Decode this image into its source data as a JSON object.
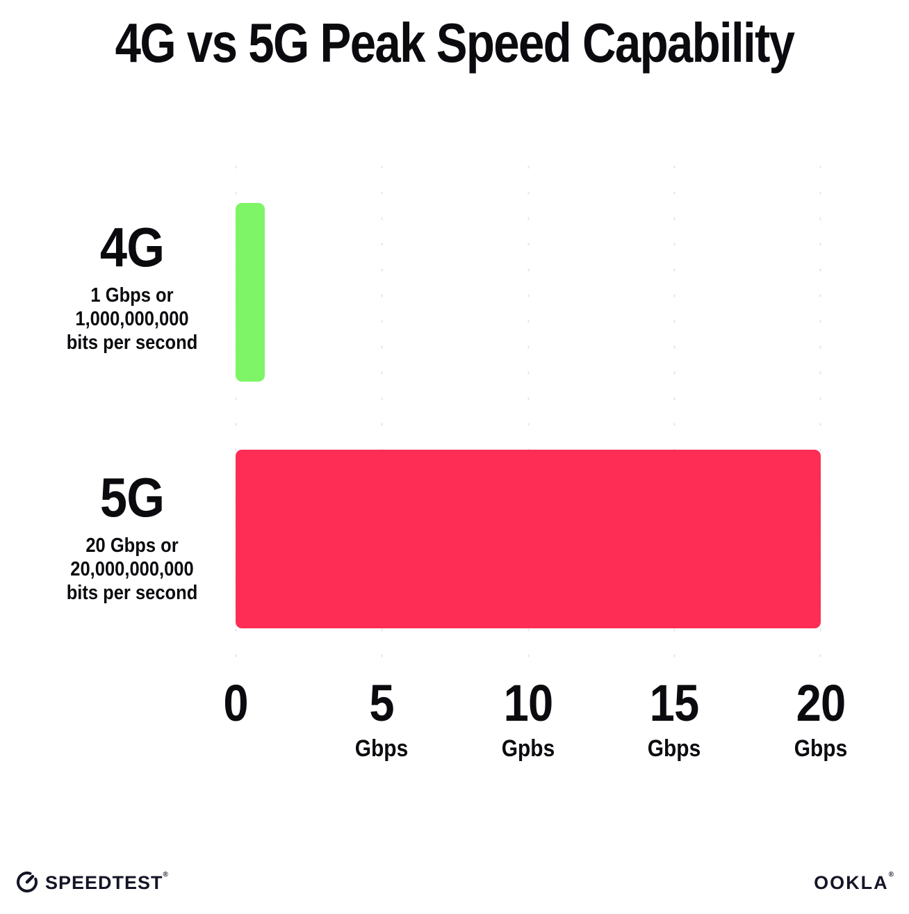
{
  "title": "4G vs 5G Peak Speed Capability",
  "chart_data": {
    "type": "bar",
    "orientation": "horizontal",
    "title": "4G vs 5G Peak Speed Capability",
    "categories": [
      "4G",
      "5G"
    ],
    "values": [
      1,
      20
    ],
    "value_unit": "Gbps",
    "xlim": [
      0,
      20
    ],
    "grid": "dotted vertical gridlines every 5 Gbps",
    "legend": "none",
    "colors": [
      "#7ef566",
      "#fd2d55"
    ],
    "rows": [
      {
        "label": "4G",
        "sub_line_1": "1 Gbps or",
        "sub_line_2": "1,000,000,000",
        "sub_line_3": "bits per second",
        "value_gbps": 1
      },
      {
        "label": "5G",
        "sub_line_1": "20 Gbps or",
        "sub_line_2": "20,000,000,000",
        "sub_line_3": "bits per second",
        "value_gbps": 20
      }
    ],
    "x_ticks": [
      {
        "value": "0",
        "unit": ""
      },
      {
        "value": "5",
        "unit": "Gbps"
      },
      {
        "value": "10",
        "unit": "Gpbs"
      },
      {
        "value": "15",
        "unit": "Gbps"
      },
      {
        "value": "20",
        "unit": "Gbps"
      }
    ]
  },
  "footer": {
    "speedtest_label": "SPEEDTEST",
    "speedtest_trademark": "®",
    "ookla_label": "OOKLA",
    "ookla_trademark": "®"
  },
  "colors": {
    "bar_4g": "#7ef566",
    "bar_5g": "#fd2d55",
    "text": "#0b0b0f",
    "gridline": "#e1e3f0",
    "logo": "#141526",
    "background": "#ffffff"
  }
}
